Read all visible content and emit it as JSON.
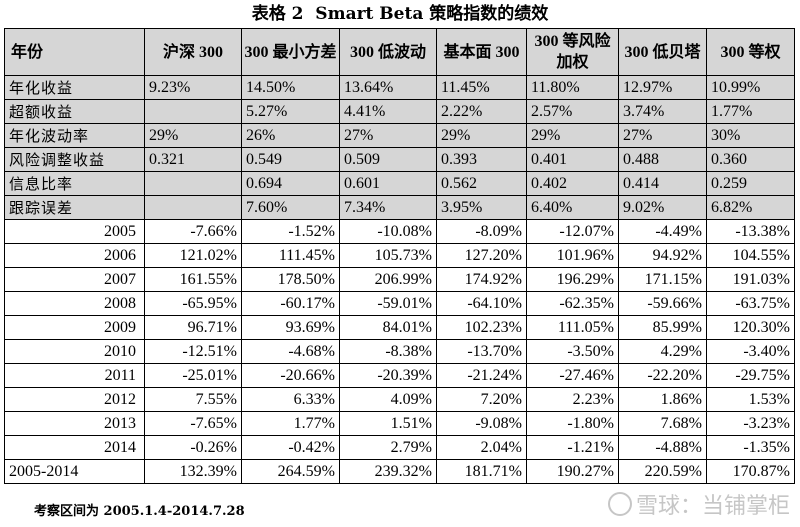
{
  "caption": "表格 2  Smart Beta 策略指数的绩效",
  "headers": [
    "年份",
    "沪深 300",
    "300 最小方差",
    "300 低波动",
    "基本面 300",
    "300 等风险加权",
    "300 低贝塔",
    "300 等权"
  ],
  "metric_rows": [
    {
      "label": "年化收益",
      "values": [
        "9.23%",
        "14.50%",
        "13.64%",
        "11.45%",
        "11.80%",
        "12.97%",
        "10.99%"
      ]
    },
    {
      "label": "超额收益",
      "values": [
        "",
        "5.27%",
        "4.41%",
        "2.22%",
        "2.57%",
        "3.74%",
        "1.77%"
      ]
    },
    {
      "label": "年化波动率",
      "values": [
        "29%",
        "26%",
        "27%",
        "29%",
        "29%",
        "27%",
        "30%"
      ]
    },
    {
      "label": "风险调整收益",
      "values": [
        "0.321",
        "0.549",
        "0.509",
        "0.393",
        "0.401",
        "0.488",
        "0.360"
      ]
    },
    {
      "label": "信息比率",
      "values": [
        "",
        "0.694",
        "0.601",
        "0.562",
        "0.402",
        "0.414",
        "0.259"
      ]
    },
    {
      "label": "跟踪误差",
      "values": [
        "",
        "7.60%",
        "7.34%",
        "3.95%",
        "6.40%",
        "9.02%",
        "6.82%"
      ]
    }
  ],
  "year_rows": [
    {
      "label": "2005",
      "values": [
        "-7.66%",
        "-1.52%",
        "-10.08%",
        "-8.09%",
        "-12.07%",
        "-4.49%",
        "-13.38%"
      ]
    },
    {
      "label": "2006",
      "values": [
        "121.02%",
        "111.45%",
        "105.73%",
        "127.20%",
        "101.96%",
        "94.92%",
        "104.55%"
      ]
    },
    {
      "label": "2007",
      "values": [
        "161.55%",
        "178.50%",
        "206.99%",
        "174.92%",
        "196.29%",
        "171.15%",
        "191.03%"
      ]
    },
    {
      "label": "2008",
      "values": [
        "-65.95%",
        "-60.17%",
        "-59.01%",
        "-64.10%",
        "-62.35%",
        "-59.66%",
        "-63.75%"
      ]
    },
    {
      "label": "2009",
      "values": [
        "96.71%",
        "93.69%",
        "84.01%",
        "102.23%",
        "111.05%",
        "85.99%",
        "120.30%"
      ]
    },
    {
      "label": "2010",
      "values": [
        "-12.51%",
        "-4.68%",
        "-8.38%",
        "-13.70%",
        "-3.50%",
        "4.29%",
        "-3.40%"
      ]
    },
    {
      "label": "2011",
      "values": [
        "-25.01%",
        "-20.66%",
        "-20.39%",
        "-21.24%",
        "-27.46%",
        "-22.20%",
        "-29.75%"
      ]
    },
    {
      "label": "2012",
      "values": [
        "7.55%",
        "6.33%",
        "4.09%",
        "7.20%",
        "2.23%",
        "1.86%",
        "1.53%"
      ]
    },
    {
      "label": "2013",
      "values": [
        "-7.65%",
        "1.77%",
        "1.51%",
        "-9.08%",
        "-1.80%",
        "7.68%",
        "-3.23%"
      ]
    },
    {
      "label": "2014",
      "values": [
        "-0.26%",
        "-0.42%",
        "2.79%",
        "2.04%",
        "-1.21%",
        "-4.88%",
        "-1.35%"
      ]
    }
  ],
  "total_row": {
    "label": "2005-2014",
    "values": [
      "132.39%",
      "264.59%",
      "239.32%",
      "181.71%",
      "190.27%",
      "220.59%",
      "170.87%"
    ]
  },
  "note": "考察区间为 2005.1.4-2014.7.28",
  "watermark": "雪球：当铺掌柜",
  "colors": {
    "header_bg": "#d6d6d6",
    "border": "#000000"
  }
}
